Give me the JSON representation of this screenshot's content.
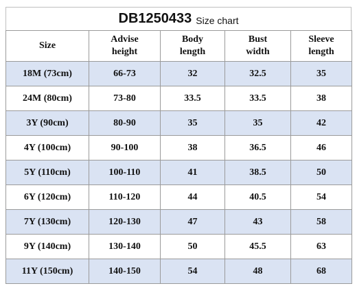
{
  "header": {
    "code": "DB1250433",
    "subtitle": "Size chart"
  },
  "table": {
    "columns": [
      {
        "line1": "Size",
        "line2": ""
      },
      {
        "line1": "Advise",
        "line2": "height"
      },
      {
        "line1": "Body",
        "line2": "length"
      },
      {
        "line1": "Bust",
        "line2": "width"
      },
      {
        "line1": "Sleeve",
        "line2": "length"
      }
    ],
    "rows": [
      {
        "size": "18M (73cm)",
        "height": "66-73",
        "body": "32",
        "bust": "32.5",
        "sleeve": "35"
      },
      {
        "size": "24M (80cm)",
        "height": "73-80",
        "body": "33.5",
        "bust": "33.5",
        "sleeve": "38"
      },
      {
        "size": "3Y (90cm)",
        "height": "80-90",
        "body": "35",
        "bust": "35",
        "sleeve": "42"
      },
      {
        "size": "4Y (100cm)",
        "height": "90-100",
        "body": "38",
        "bust": "36.5",
        "sleeve": "46"
      },
      {
        "size": "5Y (110cm)",
        "height": "100-110",
        "body": "41",
        "bust": "38.5",
        "sleeve": "50"
      },
      {
        "size": "6Y (120cm)",
        "height": "110-120",
        "body": "44",
        "bust": "40.5",
        "sleeve": "54"
      },
      {
        "size": "7Y (130cm)",
        "height": "120-130",
        "body": "47",
        "bust": "43",
        "sleeve": "58"
      },
      {
        "size": "9Y (140cm)",
        "height": "130-140",
        "body": "50",
        "bust": "45.5",
        "sleeve": "63"
      },
      {
        "size": "11Y (150cm)",
        "height": "140-150",
        "body": "54",
        "bust": "48",
        "sleeve": "68"
      }
    ]
  },
  "colors": {
    "shaded_row": "#dae3f3",
    "plain_row": "#ffffff"
  }
}
